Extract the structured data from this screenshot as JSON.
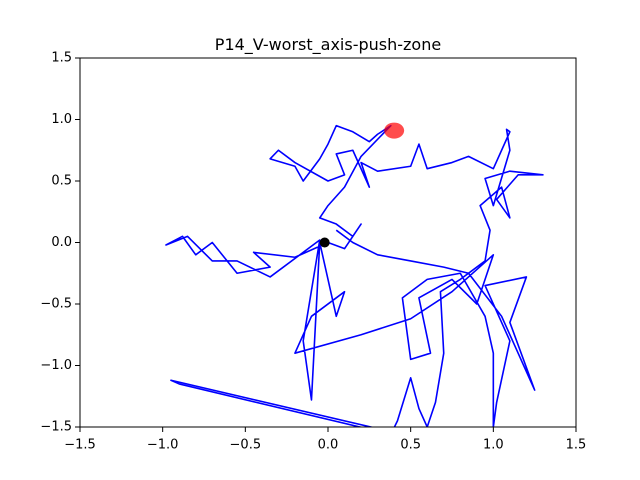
{
  "chart_data": {
    "type": "line",
    "title": "P14_V-worst_axis-push-zone",
    "xlim": [
      -1.5,
      1.5
    ],
    "ylim": [
      -1.5,
      1.5
    ],
    "xticks": [
      {
        "value": -1.5,
        "label": "−1.5"
      },
      {
        "value": -1.0,
        "label": "−1.0"
      },
      {
        "value": -0.5,
        "label": "−0.5"
      },
      {
        "value": 0.0,
        "label": "0.0"
      },
      0.5,
      {
        "value": 1.0,
        "label": "1.0"
      },
      1.5
    ],
    "yticks": [
      {
        "value": -1.5,
        "label": "−1.5"
      },
      {
        "value": -1.0,
        "label": "−1.0"
      },
      {
        "value": -0.5,
        "label": "−0.5"
      },
      {
        "value": 0.0,
        "label": "0.0"
      },
      0.5,
      {
        "value": 1.0,
        "label": "1.0"
      },
      1.5
    ],
    "grid": false,
    "series": [
      {
        "color": "#0000ff",
        "x": [
          0.45,
          -0.95,
          -0.9,
          0.38,
          0.42,
          0.5,
          0.55,
          0.6,
          0.65,
          0.7,
          0.68,
          0.8,
          0.95,
          0.98,
          0.92,
          1.05,
          1.1,
          1.02,
          1.15,
          1.3,
          1.1,
          0.95,
          1.0,
          1.1,
          1.08,
          1.1,
          1.0,
          0.85,
          0.75,
          0.6,
          0.55,
          0.5,
          0.3,
          0.2,
          0.25,
          0.15,
          0.05,
          0.1,
          0.0,
          -0.2,
          -0.3,
          -0.35,
          -0.2,
          -0.15,
          -0.05,
          0.0,
          0.05,
          0.15,
          0.25,
          0.3,
          0.38,
          0.2,
          0.1,
          0.0,
          -0.05,
          0.05,
          0.15,
          0.2,
          0.1,
          0.0,
          -0.2,
          -0.45,
          -0.35,
          -0.55,
          -0.7,
          -0.8,
          -0.88,
          -0.98,
          -0.85,
          -0.7,
          -0.55,
          -0.35,
          -0.05,
          -0.15,
          -0.1,
          -0.05,
          0.05,
          0.1,
          -0.1,
          -0.2,
          0.2,
          0.5,
          0.75,
          1.0,
          0.9,
          0.75,
          0.55,
          0.62,
          0.5,
          0.45,
          0.6,
          0.8,
          0.95,
          1.0,
          1.0,
          1.02,
          1.1,
          0.95,
          1.2,
          1.1,
          1.25,
          1.05,
          0.85,
          0.7,
          0.5,
          0.3,
          0.15,
          0.05
        ],
        "values": [
          -1.56,
          -1.12,
          -1.15,
          -1.56,
          -1.45,
          -1.1,
          -1.35,
          -1.5,
          -1.3,
          -0.9,
          -0.4,
          -0.3,
          -0.15,
          0.1,
          0.3,
          0.45,
          0.2,
          0.35,
          0.55,
          0.55,
          0.58,
          0.52,
          0.3,
          0.75,
          0.92,
          0.9,
          0.6,
          0.7,
          0.65,
          0.6,
          0.8,
          0.62,
          0.58,
          0.65,
          0.45,
          0.75,
          0.72,
          0.55,
          0.5,
          0.65,
          0.75,
          0.68,
          0.62,
          0.5,
          0.68,
          0.8,
          0.95,
          0.9,
          0.82,
          0.88,
          0.95,
          0.7,
          0.45,
          0.3,
          0.2,
          0.15,
          0.05,
          0.15,
          -0.05,
          0.0,
          -0.12,
          -0.08,
          -0.2,
          -0.25,
          0.0,
          -0.1,
          0.05,
          -0.02,
          0.05,
          -0.15,
          -0.15,
          -0.28,
          0.02,
          -0.8,
          -1.28,
          0.0,
          -0.6,
          -0.4,
          -0.6,
          -0.9,
          -0.75,
          -0.62,
          -0.4,
          -0.1,
          -0.5,
          -0.3,
          -0.45,
          -0.9,
          -0.95,
          -0.45,
          -0.3,
          -0.25,
          -0.6,
          -0.9,
          -1.5,
          -1.3,
          -0.8,
          -0.35,
          -0.28,
          -0.65,
          -1.2,
          -0.6,
          -0.25,
          -0.2,
          -0.15,
          -0.1,
          0.0,
          0.1
        ]
      }
    ],
    "points": [
      {
        "x": 0.4,
        "y": 0.91,
        "color": "#ff0000"
      },
      {
        "x": -0.02,
        "y": 0.0,
        "color": "#000000"
      }
    ]
  }
}
